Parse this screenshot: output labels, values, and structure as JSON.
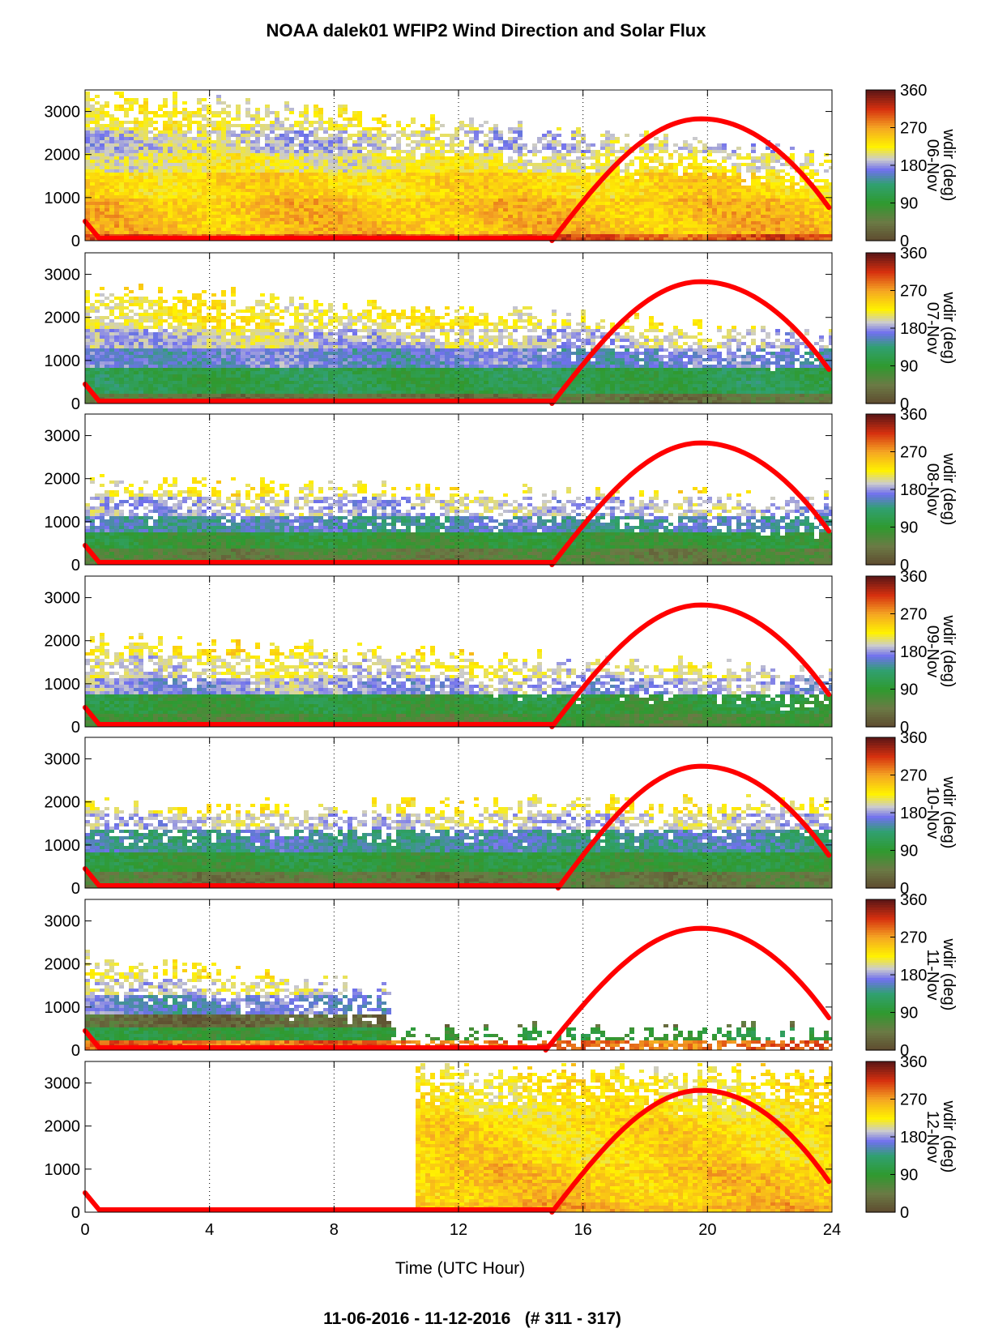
{
  "title": "NOAA dalek01 WFIP2 Wind Direction and Solar Flux",
  "footer": "11-06-2016 - 11-12-2016   (# 311 - 317)",
  "chart_data": {
    "type": "heatmap",
    "xlabel": "Time (UTC Hour)",
    "xlim": [
      0,
      24
    ],
    "xticks": [
      0,
      4,
      8,
      12,
      16,
      20,
      24
    ],
    "ylim": [
      0,
      3500
    ],
    "yticks": [
      0,
      1000,
      2000,
      3000
    ],
    "colorbar": {
      "label": "wdir (deg)",
      "ticks": [
        0,
        90,
        180,
        270,
        360
      ],
      "stops": [
        {
          "v": 0,
          "c": "#5e4a2e"
        },
        {
          "v": 45,
          "c": "#6b7a45"
        },
        {
          "v": 90,
          "c": "#2f9a2f"
        },
        {
          "v": 135,
          "c": "#30a070"
        },
        {
          "v": 170,
          "c": "#7070ee"
        },
        {
          "v": 195,
          "c": "#cccccc"
        },
        {
          "v": 225,
          "c": "#fff200"
        },
        {
          "v": 270,
          "c": "#f5a623"
        },
        {
          "v": 315,
          "c": "#d6300f"
        },
        {
          "v": 360,
          "c": "#5a1616"
        }
      ]
    },
    "solar_flux_color": "#ff0000",
    "panels": [
      {
        "date": "06-Nov",
        "layers": [
          [
            0,
            200,
            300
          ],
          [
            200,
            1000,
            255
          ],
          [
            1000,
            1600,
            240
          ],
          [
            1600,
            2100,
            215
          ],
          [
            2100,
            2600,
            195
          ],
          [
            2600,
            3300,
            215
          ]
        ],
        "top_start": 3450,
        "top_end": 2000,
        "solar": {
          "rise": 15.0,
          "set": 0.45,
          "peak_hour": 19.8,
          "peak": 2830,
          "end": 720
        }
      },
      {
        "date": "07-Nov",
        "layers": [
          [
            0,
            250,
            40
          ],
          [
            250,
            900,
            110
          ],
          [
            900,
            1300,
            165
          ],
          [
            1300,
            1800,
            195
          ],
          [
            1800,
            2600,
            220
          ],
          [
            2600,
            3400,
            228
          ]
        ],
        "top_start": 2700,
        "top_end": 1600,
        "solar": {
          "rise": 15.0,
          "set": 0.45,
          "peak_hour": 19.8,
          "peak": 2830,
          "end": 740
        }
      },
      {
        "date": "08-Nov",
        "layers": [
          [
            0,
            400,
            55
          ],
          [
            400,
            800,
            90
          ],
          [
            800,
            1200,
            150
          ],
          [
            1200,
            1600,
            190
          ],
          [
            1600,
            2000,
            222
          ]
        ],
        "top_start": 1900,
        "top_end": 1550,
        "solar": {
          "rise": 15.0,
          "set": 0.45,
          "peak_hour": 19.8,
          "peak": 2830,
          "end": 730
        }
      },
      {
        "date": "09-Nov",
        "layers": [
          [
            0,
            350,
            70
          ],
          [
            350,
            800,
            95
          ],
          [
            800,
            1200,
            180
          ],
          [
            1200,
            1700,
            205
          ],
          [
            1700,
            2200,
            228
          ]
        ],
        "top_start": 2000,
        "top_end": 1300,
        "solar": {
          "rise": 15.0,
          "set": 0.45,
          "peak_hour": 19.8,
          "peak": 2830,
          "end": 700
        }
      },
      {
        "date": "10-Nov",
        "layers": [
          [
            0,
            400,
            45
          ],
          [
            400,
            900,
            95
          ],
          [
            900,
            1400,
            145
          ],
          [
            1400,
            1800,
            195
          ],
          [
            1800,
            2200,
            222
          ]
        ],
        "top_start": 1900,
        "top_end": 2000,
        "solar": {
          "rise": 15.2,
          "set": 0.45,
          "peak_hour": 19.8,
          "peak": 2830,
          "end": 710
        }
      },
      {
        "date": "11-Nov",
        "layers": [
          [
            0,
            300,
            290
          ],
          [
            300,
            600,
            95
          ],
          [
            600,
            900,
            30
          ],
          [
            900,
            1300,
            165
          ],
          [
            1300,
            1700,
            200
          ],
          [
            1700,
            2300,
            225
          ]
        ],
        "top_start": 2100,
        "top_end": 500,
        "cutoff": 9.8,
        "solar": {
          "rise": 14.8,
          "set": 0.45,
          "peak_hour": 19.8,
          "peak": 2830,
          "end": 700
        }
      },
      {
        "date": "12-Nov",
        "layers": [
          [
            0,
            300,
            260
          ],
          [
            300,
            1200,
            250
          ],
          [
            1200,
            2200,
            240
          ],
          [
            2200,
            3400,
            228
          ]
        ],
        "top_start": 3400,
        "top_end": 3200,
        "start_hour": 10.5,
        "solar": {
          "rise": 15.0,
          "set": 0.45,
          "peak_hour": 19.8,
          "peak": 2830,
          "end": 660
        }
      }
    ]
  }
}
